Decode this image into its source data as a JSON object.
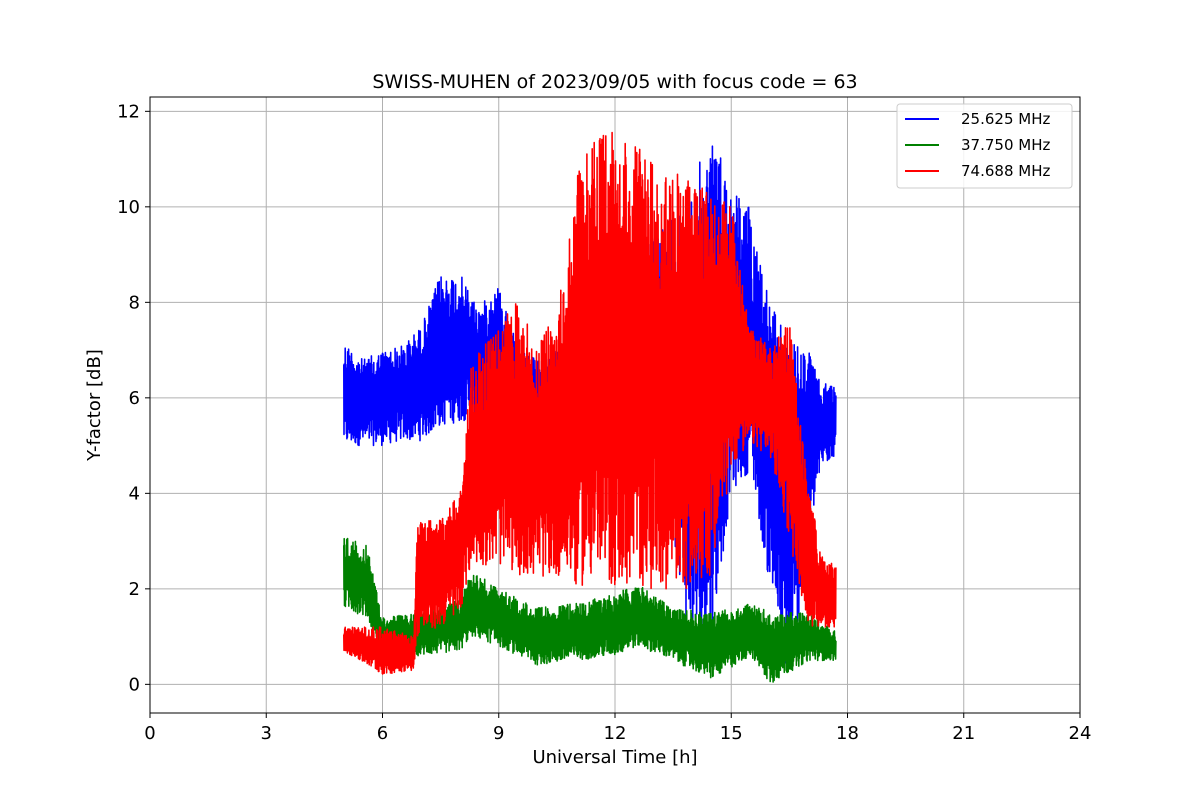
{
  "chart_data": {
    "type": "line",
    "title": "SWISS-MUHEN of 2023/09/05 with focus code = 63",
    "xlabel": "Universal Time [h]",
    "ylabel": "Y-factor [dB]",
    "xlim": [
      0,
      24
    ],
    "ylim": [
      -0.6,
      12.3
    ],
    "xticks": [
      0,
      3,
      6,
      9,
      12,
      15,
      18,
      21,
      24
    ],
    "yticks": [
      0,
      2,
      4,
      6,
      8,
      10,
      12
    ],
    "grid": true,
    "legend_position": "top-right",
    "series": [
      {
        "name": "25.625 MHz",
        "color": "#0000ff",
        "envelope": [
          {
            "x": 5.0,
            "low": 5.0,
            "high": 7.2
          },
          {
            "x": 5.5,
            "low": 5.0,
            "high": 6.8
          },
          {
            "x": 6.0,
            "low": 5.0,
            "high": 7.0
          },
          {
            "x": 6.5,
            "low": 5.1,
            "high": 7.1
          },
          {
            "x": 7.0,
            "low": 5.1,
            "high": 7.5
          },
          {
            "x": 7.5,
            "low": 5.4,
            "high": 8.6
          },
          {
            "x": 8.0,
            "low": 5.5,
            "high": 8.6
          },
          {
            "x": 8.5,
            "low": 5.6,
            "high": 7.9
          },
          {
            "x": 9.0,
            "low": 5.4,
            "high": 8.4
          },
          {
            "x": 9.5,
            "low": 5.4,
            "high": 7.0
          },
          {
            "x": 10.0,
            "low": 5.2,
            "high": 6.8
          },
          {
            "x": 10.5,
            "low": 5.5,
            "high": 7.0
          },
          {
            "x": 11.0,
            "low": 6.0,
            "high": 8.0
          },
          {
            "x": 12.0,
            "low": 6.0,
            "high": 9.0
          },
          {
            "x": 13.0,
            "low": 6.0,
            "high": 9.5
          },
          {
            "x": 14.0,
            "low": 0.4,
            "high": 10.5
          },
          {
            "x": 14.5,
            "low": 1.0,
            "high": 11.7
          },
          {
            "x": 15.0,
            "low": 4.0,
            "high": 10.5
          },
          {
            "x": 15.5,
            "low": 4.5,
            "high": 10.0
          },
          {
            "x": 16.0,
            "low": 2.0,
            "high": 8.0
          },
          {
            "x": 16.5,
            "low": 0.0,
            "high": 7.2
          },
          {
            "x": 17.0,
            "low": 3.0,
            "high": 7.0
          },
          {
            "x": 17.3,
            "low": 4.5,
            "high": 6.3
          },
          {
            "x": 17.7,
            "low": 4.8,
            "high": 6.3
          }
        ]
      },
      {
        "name": "37.750 MHz",
        "color": "#008000",
        "envelope": [
          {
            "x": 5.0,
            "low": 1.6,
            "high": 3.1
          },
          {
            "x": 5.6,
            "low": 1.4,
            "high": 2.9
          },
          {
            "x": 6.0,
            "low": 0.6,
            "high": 1.4
          },
          {
            "x": 7.0,
            "low": 0.6,
            "high": 1.5
          },
          {
            "x": 8.0,
            "low": 0.7,
            "high": 1.8
          },
          {
            "x": 8.3,
            "low": 1.0,
            "high": 2.4
          },
          {
            "x": 9.0,
            "low": 0.8,
            "high": 2.0
          },
          {
            "x": 10.0,
            "low": 0.4,
            "high": 1.6
          },
          {
            "x": 11.0,
            "low": 0.5,
            "high": 1.7
          },
          {
            "x": 12.0,
            "low": 0.6,
            "high": 1.9
          },
          {
            "x": 12.6,
            "low": 0.8,
            "high": 2.1
          },
          {
            "x": 13.5,
            "low": 0.5,
            "high": 1.6
          },
          {
            "x": 14.5,
            "low": 0.1,
            "high": 1.5
          },
          {
            "x": 15.5,
            "low": 0.6,
            "high": 1.7
          },
          {
            "x": 16.0,
            "low": 0.0,
            "high": 1.5
          },
          {
            "x": 17.0,
            "low": 0.5,
            "high": 1.5
          },
          {
            "x": 17.7,
            "low": 0.5,
            "high": 1.1
          }
        ]
      },
      {
        "name": "74.688 MHz",
        "color": "#ff0000",
        "envelope": [
          {
            "x": 5.0,
            "low": 0.7,
            "high": 1.2
          },
          {
            "x": 6.0,
            "low": 0.2,
            "high": 1.2
          },
          {
            "x": 6.8,
            "low": 0.3,
            "high": 1.0
          },
          {
            "x": 6.9,
            "low": 1.0,
            "high": 3.4
          },
          {
            "x": 7.5,
            "low": 1.2,
            "high": 3.5
          },
          {
            "x": 8.0,
            "low": 1.5,
            "high": 4.0
          },
          {
            "x": 8.3,
            "low": 2.5,
            "high": 6.8
          },
          {
            "x": 9.0,
            "low": 2.5,
            "high": 7.5
          },
          {
            "x": 9.5,
            "low": 2.3,
            "high": 8.1
          },
          {
            "x": 10.0,
            "low": 2.2,
            "high": 7.0
          },
          {
            "x": 10.7,
            "low": 2.3,
            "high": 8.5
          },
          {
            "x": 11.0,
            "low": 2.0,
            "high": 10.7
          },
          {
            "x": 11.5,
            "low": 2.2,
            "high": 11.5
          },
          {
            "x": 12.0,
            "low": 2.0,
            "high": 11.6
          },
          {
            "x": 13.0,
            "low": 2.0,
            "high": 11.0
          },
          {
            "x": 14.0,
            "low": 2.0,
            "high": 10.5
          },
          {
            "x": 14.5,
            "low": 2.2,
            "high": 10.3
          },
          {
            "x": 15.0,
            "low": 4.5,
            "high": 10.0
          },
          {
            "x": 15.5,
            "low": 5.0,
            "high": 7.5
          },
          {
            "x": 16.0,
            "low": 4.8,
            "high": 7.2
          },
          {
            "x": 16.5,
            "low": 3.0,
            "high": 7.6
          },
          {
            "x": 17.0,
            "low": 1.2,
            "high": 4.0
          },
          {
            "x": 17.4,
            "low": 1.2,
            "high": 2.6
          },
          {
            "x": 17.7,
            "low": 1.2,
            "high": 2.5
          }
        ]
      }
    ]
  }
}
